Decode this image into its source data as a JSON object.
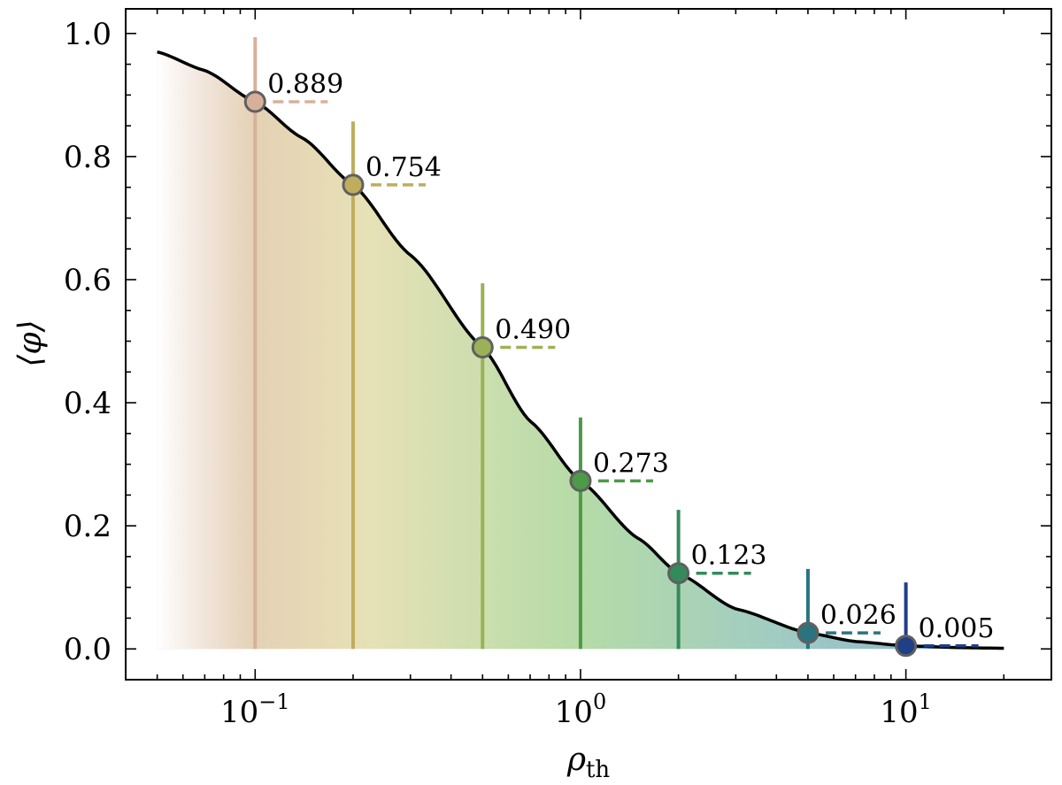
{
  "chart_data": {
    "type": "line",
    "xscale": "log",
    "xlim": [
      0.04,
      28
    ],
    "ylim": [
      -0.05,
      1.04
    ],
    "xlabel": "ρ_th",
    "xlabel_main": "ρ",
    "xlabel_sub": "th",
    "ylabel": "⟨φ⟩",
    "xticks": [
      0.1,
      1,
      10
    ],
    "xtick_labels": [
      {
        "base": "10",
        "exp": "−1"
      },
      {
        "base": "10",
        "exp": "0"
      },
      {
        "base": "10",
        "exp": "1"
      }
    ],
    "yticks": [
      0.0,
      0.2,
      0.4,
      0.6,
      0.8,
      1.0
    ],
    "ytick_labels": [
      "0.0",
      "0.2",
      "0.4",
      "0.6",
      "0.8",
      "1.0"
    ],
    "curve": {
      "x": [
        0.05,
        0.07,
        0.1,
        0.14,
        0.2,
        0.3,
        0.5,
        0.7,
        1,
        1.5,
        2,
        3,
        5,
        7,
        10,
        15,
        20
      ],
      "y": [
        0.97,
        0.94,
        0.889,
        0.83,
        0.754,
        0.64,
        0.49,
        0.37,
        0.273,
        0.18,
        0.123,
        0.065,
        0.026,
        0.012,
        0.005,
        0.002,
        0.001
      ]
    },
    "points": [
      {
        "x": 0.1,
        "value": 0.889,
        "label": "0.889",
        "err_upper": 0.994,
        "color": "#d8b09a"
      },
      {
        "x": 0.2,
        "value": 0.754,
        "label": "0.754",
        "err_upper": 0.857,
        "color": "#bfad5d"
      },
      {
        "x": 0.5,
        "value": 0.49,
        "label": "0.490",
        "err_upper": 0.594,
        "color": "#9bb157"
      },
      {
        "x": 1,
        "value": 0.273,
        "label": "0.273",
        "err_upper": 0.376,
        "color": "#4d9a48"
      },
      {
        "x": 2,
        "value": 0.123,
        "label": "0.123",
        "err_upper": 0.226,
        "color": "#348a5a"
      },
      {
        "x": 5,
        "value": 0.026,
        "label": "0.026",
        "err_upper": 0.13,
        "color": "#2a7480"
      },
      {
        "x": 10,
        "value": 0.005,
        "label": "0.005",
        "err_upper": 0.108,
        "color": "#1f3f86"
      }
    ],
    "fill_gradient_colors": [
      "#d8b09a",
      "#dfd79e",
      "#9ccf8a",
      "#7fb9b0",
      "#5e8fb9"
    ],
    "grid": false,
    "legend": "none"
  }
}
